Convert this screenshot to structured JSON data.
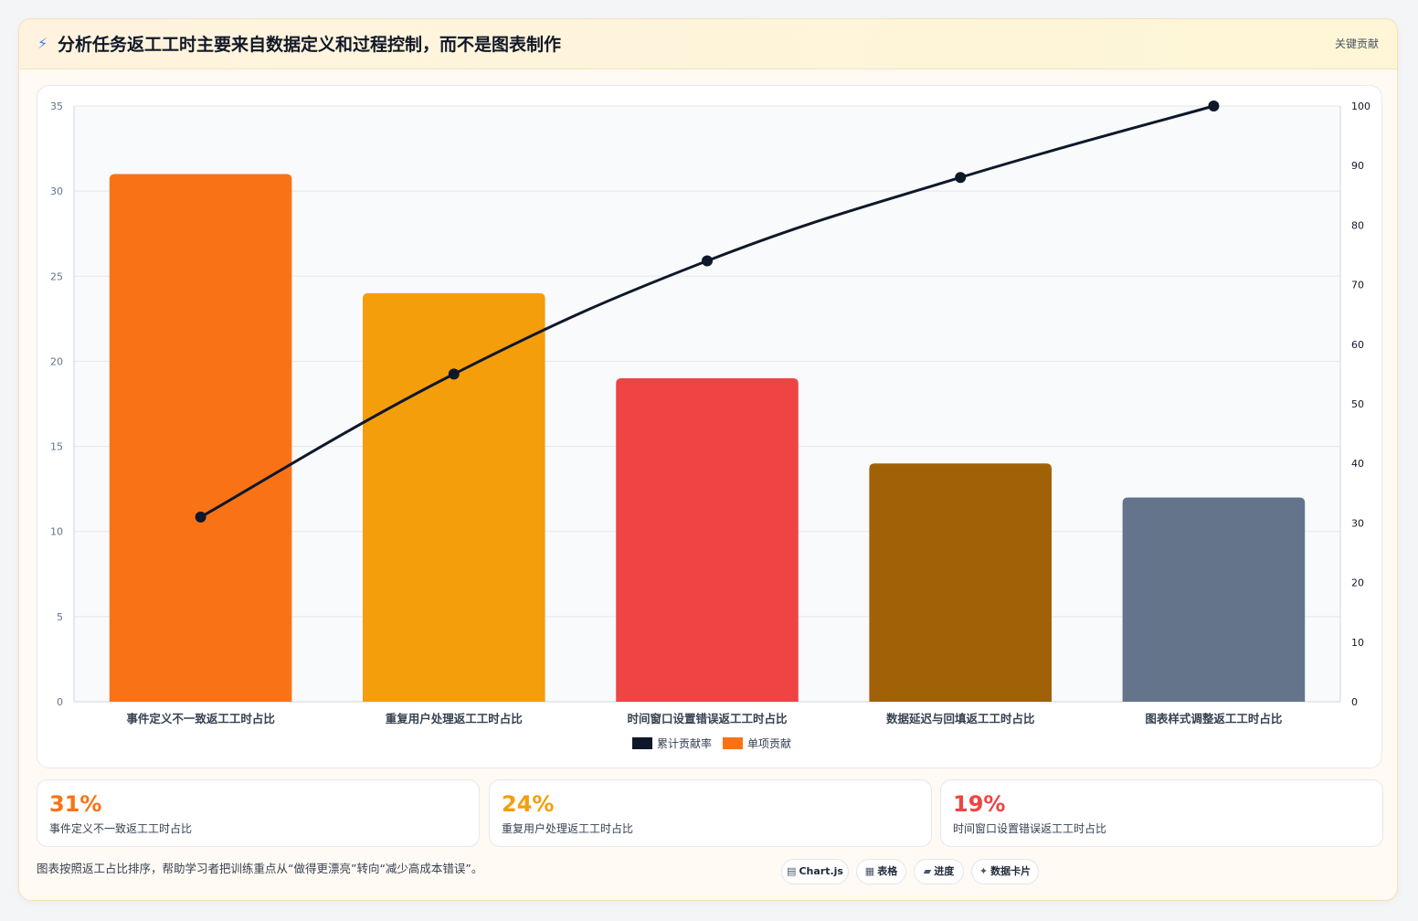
{
  "header": {
    "icon": "lightning-icon",
    "title": "分析任务返工工时主要来自数据定义和过程控制，而不是图表制作",
    "tag": "关键贡献"
  },
  "chart_data": {
    "type": "bar",
    "categories": [
      "事件定义不一致返工工时占比",
      "重复用户处理返工工时占比",
      "时间窗口设置错误返工工时占比",
      "数据延迟与回填返工工时占比",
      "图表样式调整返工工时占比"
    ],
    "series": [
      {
        "name": "单项贡献",
        "type": "bar",
        "axis": "left",
        "values": [
          31,
          24,
          19,
          14,
          12
        ],
        "colors": [
          "#f97316",
          "#f59e0b",
          "#ef4444",
          "#a16207",
          "#64748b"
        ]
      },
      {
        "name": "累计贡献率",
        "type": "line",
        "axis": "right",
        "values": [
          31,
          55,
          74,
          88,
          100
        ],
        "color": "#0f172a"
      }
    ],
    "y_left": {
      "min": 0,
      "max": 35,
      "ticks": [
        0,
        5,
        10,
        15,
        20,
        25,
        30,
        35
      ]
    },
    "y_right": {
      "min": 0,
      "max": 100,
      "ticks": [
        0,
        10,
        20,
        30,
        40,
        50,
        60,
        70,
        80,
        90,
        100
      ]
    },
    "legend": {
      "position": "bottom",
      "items": [
        "累计贡献率",
        "单项贡献"
      ],
      "colors": [
        "#0f172a",
        "#f97316"
      ]
    },
    "grid": true
  },
  "stats": [
    {
      "value": "31%",
      "label": "事件定义不一致返工工时占比",
      "color": "#f97316"
    },
    {
      "value": "24%",
      "label": "重复用户处理返工工时占比",
      "color": "#f59e0b"
    },
    {
      "value": "19%",
      "label": "时间窗口设置错误返工工时占比",
      "color": "#ef4444"
    }
  ],
  "footnote": "图表按照返工占比排序，帮助学习者把训练重点从“做得更漂亮”转向“减少高成本错误”。",
  "chips": [
    {
      "icon": "chart-icon",
      "glyph": "▤",
      "label": "Chart.js"
    },
    {
      "icon": "table-icon",
      "glyph": "▦",
      "label": "表格"
    },
    {
      "icon": "progress-icon",
      "glyph": "▰",
      "label": "进度"
    },
    {
      "icon": "sparkle-icon",
      "glyph": "✦",
      "label": "数据卡片"
    }
  ]
}
